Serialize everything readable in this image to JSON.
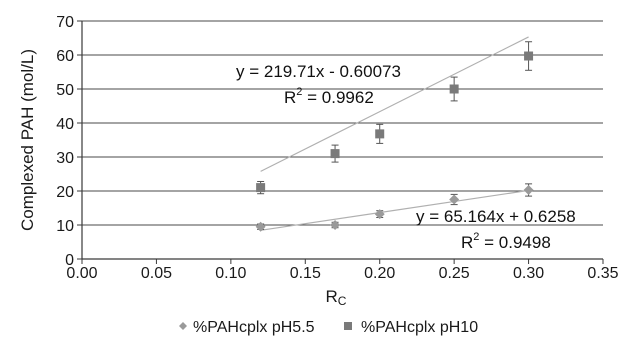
{
  "chart_data": {
    "type": "scatter",
    "title": "",
    "xlabel": "Rc",
    "xlabel_main": "R",
    "xlabel_sub": "C",
    "ylabel": "Complexed PAH (mol/L)",
    "xlim": [
      0,
      0.35
    ],
    "ylim": [
      0,
      70
    ],
    "xticks": [
      "0.00",
      "0.05",
      "0.10",
      "0.15",
      "0.20",
      "0.25",
      "0.30",
      "0.35"
    ],
    "yticks": [
      "0",
      "10",
      "20",
      "30",
      "40",
      "50",
      "60",
      "70"
    ],
    "grid": "horizontal",
    "legend_position": "bottom",
    "series": [
      {
        "name": "%PAHcplx pH5.5",
        "marker": "diamond",
        "color": "#9a9a9a",
        "x": [
          0.12,
          0.17,
          0.2,
          0.25,
          0.3
        ],
        "y": [
          9.5,
          10.0,
          13.2,
          17.5,
          20.3
        ],
        "err": [
          0.8,
          0.8,
          1.0,
          1.5,
          1.8
        ],
        "trend": {
          "slope": 65.164,
          "intercept": 0.6258,
          "from": 0.12,
          "to": 0.3
        },
        "equation": "y = 65.164x + 0.6258",
        "r2_label": "R",
        "r2_value": " = 0.9498"
      },
      {
        "name": "%PAHcplx pH10",
        "marker": "square",
        "color": "#7a7a7a",
        "x": [
          0.12,
          0.17,
          0.2,
          0.25,
          0.3
        ],
        "y": [
          21.0,
          31.0,
          36.8,
          50.0,
          59.7
        ],
        "err": [
          1.8,
          2.5,
          2.8,
          3.5,
          4.2
        ],
        "trend": {
          "slope": 219.71,
          "intercept": -0.60073,
          "from": 0.12,
          "to": 0.3
        },
        "equation": "y = 219.71x - 0.60073",
        "r2_label": "R",
        "r2_value": " = 0.9962"
      }
    ]
  }
}
